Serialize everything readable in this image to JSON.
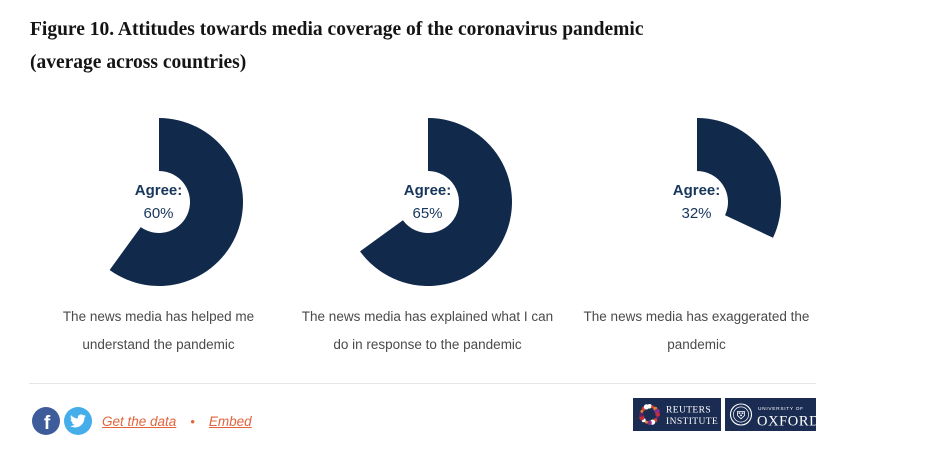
{
  "figure": {
    "title_line1": "Figure 10. Attitudes towards media coverage of the coronavirus pandemic",
    "title_line2": "(average across countries)"
  },
  "chart_data": {
    "type": "pie",
    "variant": "donut",
    "unit": "percent",
    "start_angle_deg": 0,
    "direction": "clockwise",
    "legend_position": "none",
    "charts": [
      {
        "caption": "The news media has helped me understand the pandemic",
        "series": "Agree",
        "agree_pct": 60,
        "center_label": "Agree:",
        "center_value": "60%"
      },
      {
        "caption": "The news media has explained what I can do in response to the pandemic",
        "series": "Agree",
        "agree_pct": 65,
        "center_label": "Agree:",
        "center_value": "65%"
      },
      {
        "caption": "The news media has exaggerated the pandemic",
        "series": "Agree",
        "agree_pct": 32,
        "center_label": "Agree:",
        "center_value": "32%"
      }
    ]
  },
  "footer": {
    "get_the_data_label": "Get the data",
    "separator": "•",
    "embed_label": "Embed",
    "facebook_glyph": "f",
    "logos": {
      "reuters": {
        "line1": "REUTERS",
        "line2": "INSTITUTE"
      },
      "oxford": {
        "line1": "UNIVERSITY OF",
        "line2": "OXFORD"
      }
    }
  },
  "colors": {
    "donut_navy": "#112a4c",
    "center_text_navy": "#17365c",
    "caption_gray": "#4a4a4a",
    "title_black": "#141414",
    "link_orange": "#e2643c",
    "facebook_blue": "#3e5c9a",
    "twitter_blue": "#45aeea",
    "logo_navy": "#1b2c52",
    "divider_gray": "#e4e6e8",
    "reuters_dot_palette": [
      "#ffffff",
      "#d8432c",
      "#e5802d",
      "#8e2f8d",
      "#c22d3a",
      "#6b2470",
      "#d8432c",
      "#ffffff",
      "#8e2f8d",
      "#e5802d",
      "#ffffff",
      "#c22d3a",
      "#5e2164",
      "#e5802d",
      "#d8432c",
      "#ffffff"
    ]
  }
}
